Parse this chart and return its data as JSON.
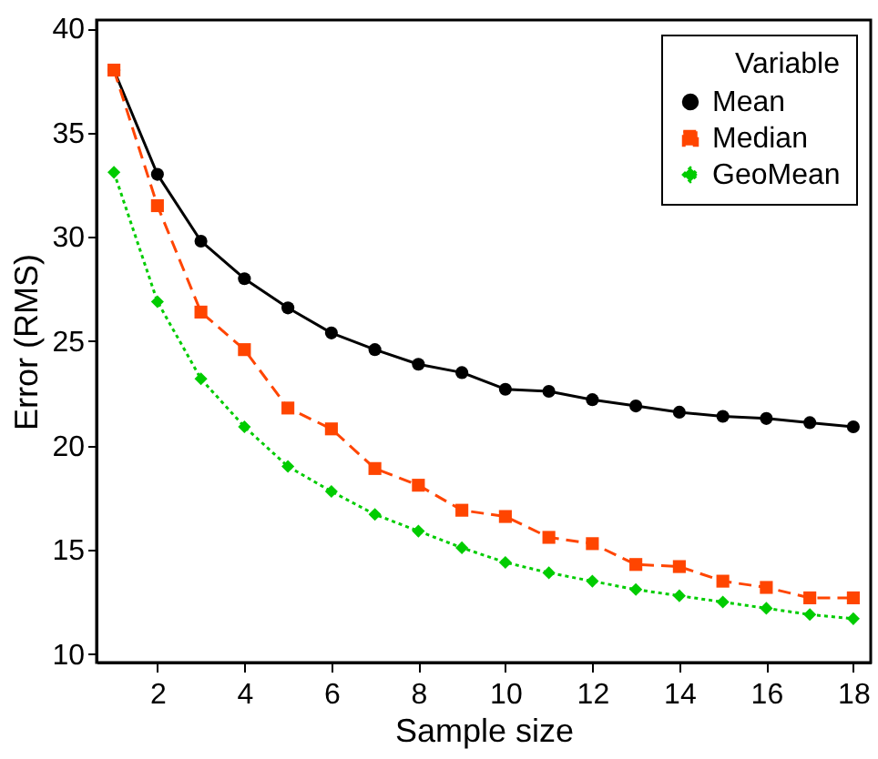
{
  "chart_data": {
    "type": "line",
    "xlabel": "Sample size",
    "ylabel": "Error (RMS)",
    "legend_title": "Variable",
    "x": [
      1,
      2,
      3,
      4,
      5,
      6,
      7,
      8,
      9,
      10,
      11,
      12,
      13,
      14,
      15,
      16,
      17,
      18
    ],
    "series": [
      {
        "name": "Mean",
        "color": "#000000",
        "marker": "circle",
        "line_style": "solid",
        "values": [
          38,
          33,
          29.8,
          28,
          26.6,
          25.4,
          24.6,
          23.9,
          23.5,
          22.7,
          22.6,
          22.2,
          21.9,
          21.6,
          21.4,
          21.3,
          21.1,
          20.9
        ]
      },
      {
        "name": "Median",
        "color": "#ff4500",
        "marker": "square",
        "line_style": "dashed",
        "values": [
          38,
          31.5,
          26.4,
          24.6,
          21.8,
          20.8,
          18.9,
          18.1,
          16.9,
          16.6,
          15.6,
          15.3,
          14.3,
          14.2,
          13.5,
          13.2,
          12.7,
          12.7
        ]
      },
      {
        "name": "GeoMean",
        "color": "#00cc00",
        "marker": "diamond",
        "line_style": "dotted",
        "values": [
          33.1,
          26.9,
          23.2,
          20.9,
          19.0,
          17.8,
          16.7,
          15.9,
          15.1,
          14.4,
          13.9,
          13.5,
          13.1,
          12.8,
          12.5,
          12.2,
          11.9,
          11.7
        ]
      }
    ],
    "xlim": [
      0.6,
      18.4
    ],
    "ylim": [
      9.6,
      40.4
    ],
    "xticks": [
      2,
      4,
      6,
      8,
      10,
      12,
      14,
      16,
      18
    ],
    "yticks": [
      10,
      15,
      20,
      25,
      30,
      35,
      40
    ],
    "grid": false,
    "legend": "top right"
  }
}
